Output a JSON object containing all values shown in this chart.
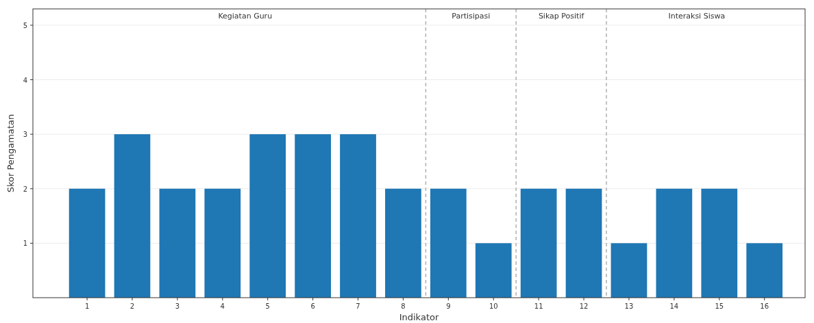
{
  "chart_data": {
    "type": "bar",
    "xlabel": "Indikator",
    "ylabel": "Skor Pengamatan",
    "x": [
      1,
      2,
      3,
      4,
      5,
      6,
      7,
      8,
      9,
      10,
      11,
      12,
      13,
      14,
      15,
      16
    ],
    "values": [
      2,
      3,
      2,
      2,
      3,
      3,
      3,
      2,
      2,
      1,
      2,
      2,
      1,
      2,
      2,
      1
    ],
    "color": "#1f77b4",
    "xlim": [
      -0.2,
      16.9
    ],
    "xticks": [
      1,
      2,
      3,
      4,
      5,
      6,
      7,
      8,
      9,
      10,
      11,
      12,
      13,
      14,
      15,
      16
    ],
    "ylim": [
      0,
      5.3
    ],
    "yticks": [
      1,
      2,
      3,
      4,
      5
    ],
    "grid": "y",
    "ref_lines": [
      {
        "axis": "x",
        "value": 8.5,
        "color": "#b0b0b0",
        "line_style": "dashed"
      },
      {
        "axis": "x",
        "value": 10.5,
        "color": "#b0b0b0",
        "line_style": "dashed"
      },
      {
        "axis": "x",
        "value": 12.5,
        "color": "#b0b0b0",
        "line_style": "dashed"
      }
    ],
    "annotations": [
      "Kegiatan Guru",
      "Partisipasi",
      "Sikap Positif",
      "Interaksi Siswa"
    ]
  }
}
